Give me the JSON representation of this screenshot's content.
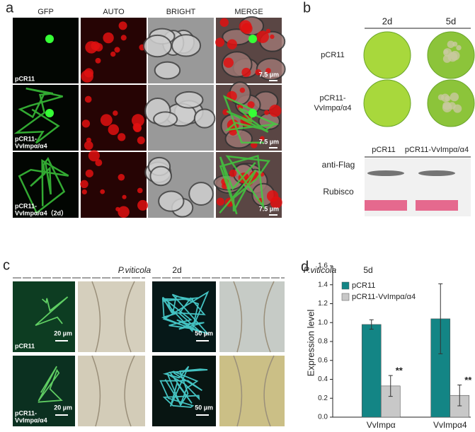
{
  "panel_a": {
    "label": "a",
    "columns": [
      "GFP",
      "AUTO",
      "BRIGHT",
      "MERGE"
    ],
    "rows": [
      {
        "label": [
          "pCR11"
        ],
        "scale": "7.5 µm"
      },
      {
        "label": [
          "pCR11-",
          "VvImpα/α4"
        ],
        "scale": "7.5 µm"
      },
      {
        "label": [
          "pCR11-",
          "VvImpα/α4（2d）"
        ],
        "scale": "7.5 µm"
      }
    ]
  },
  "panel_b": {
    "label": "b",
    "columns": [
      "2d",
      "5d"
    ],
    "rows": [
      [
        "pCR11"
      ],
      [
        "pCR11-",
        "VvImpα/α4"
      ]
    ],
    "blot_columns": [
      "pCR11",
      "pCR11-VvImpα/α4"
    ],
    "blot_rows": [
      "anti-Flag",
      "Rubisco"
    ]
  },
  "panel_c": {
    "label": "c",
    "groups": [
      {
        "pathogen": "P.viticola",
        "time": "2d",
        "scale": "20 µm"
      },
      {
        "pathogen": "P.viticola",
        "time": "5d",
        "scale": "50 µm"
      }
    ],
    "rows": [
      [
        "pCR11"
      ],
      [
        "pCR11-",
        "VvImpα/α4"
      ]
    ]
  },
  "panel_d": {
    "label": "d",
    "chart_data": {
      "type": "bar",
      "y_label": "Expression level",
      "categories": [
        "VvImpα",
        "VvImpα4"
      ],
      "series": [
        {
          "name": "pCR11",
          "color": "#138585",
          "values": [
            0.98,
            1.04
          ],
          "errors": [
            0.05,
            0.37
          ]
        },
        {
          "name": "pCR11-VvImpα/α4",
          "color": "#c8c8c8",
          "values": [
            0.33,
            0.23
          ],
          "errors": [
            0.11,
            0.11
          ],
          "annotations": [
            "**",
            "**"
          ]
        }
      ],
      "ylim": [
        0,
        1.6
      ],
      "yticks": [
        {
          "value": 0,
          "label": "0.0"
        },
        0.2,
        0.4,
        0.6,
        0.8,
        {
          "value": 1,
          "label": "1.0"
        },
        1.2,
        1.4,
        1.6
      ],
      "legend": "upper left",
      "grid": false
    }
  }
}
